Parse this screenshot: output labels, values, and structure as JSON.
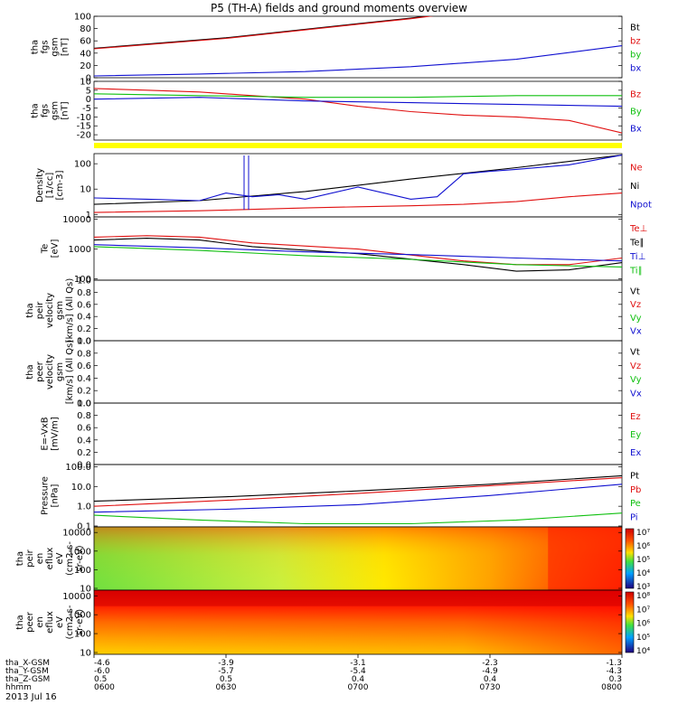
{
  "title": "P5 (TH-A) fields and ground moments overview",
  "date_label": "2013 Jul 16",
  "chart_data": [
    {
      "type": "line",
      "ylabel": [
        "tha",
        "fgs",
        "gsm",
        "[nT]"
      ],
      "ylim": [
        0,
        100
      ],
      "scale": "linear",
      "ticks": [
        0,
        20,
        40,
        60,
        80,
        100
      ],
      "series": [
        {
          "name": "Bt",
          "color": "#000000",
          "x": [
            0,
            0.25,
            0.5,
            0.6,
            0.7
          ],
          "y": [
            48,
            65,
            88,
            97,
            108
          ]
        },
        {
          "name": "bz",
          "color": "#e01010",
          "x": [
            0,
            0.25,
            0.5,
            0.6,
            0.7
          ],
          "y": [
            47,
            64,
            87,
            96,
            107
          ]
        },
        {
          "name": "by",
          "color": "#10c010",
          "x": [
            0,
            0.1,
            0.3,
            0.6,
            1.0
          ],
          "y": [
            -5,
            -5,
            -4,
            -4,
            -3
          ]
        },
        {
          "name": "bx",
          "color": "#1010d0",
          "x": [
            0,
            0.2,
            0.4,
            0.6,
            0.8,
            1.0
          ],
          "y": [
            3,
            6,
            10,
            18,
            30,
            52
          ]
        }
      ]
    },
    {
      "type": "line",
      "ylabel": [
        "tha",
        "fgs",
        "gsm",
        "[nT]"
      ],
      "ylim": [
        -23,
        10
      ],
      "scale": "linear",
      "ticks": [
        -20,
        -15,
        -10,
        -5,
        0,
        5,
        10
      ],
      "series": [
        {
          "name": "Bz",
          "color": "#e01010",
          "x": [
            0,
            0.1,
            0.2,
            0.3,
            0.4,
            0.5,
            0.6,
            0.7,
            0.8,
            0.9,
            1.0
          ],
          "y": [
            6,
            5,
            4,
            2,
            0,
            -4,
            -7,
            -9,
            -10,
            -12,
            -19
          ]
        },
        {
          "name": "By",
          "color": "#10c010",
          "x": [
            0,
            0.2,
            0.4,
            0.6,
            0.8,
            1.0
          ],
          "y": [
            3,
            2,
            1,
            1,
            2,
            2
          ]
        },
        {
          "name": "Bx",
          "color": "#1010d0",
          "x": [
            0,
            0.2,
            0.4,
            0.6,
            0.8,
            1.0
          ],
          "y": [
            0,
            1,
            -1,
            -2,
            -3,
            -4
          ]
        }
      ]
    },
    {
      "type": "line",
      "ylabel": [
        "Density",
        "[1/cc]",
        "[cm-3]"
      ],
      "ylim": [
        0.8,
        250
      ],
      "scale": "log",
      "ticks": [
        1,
        10,
        100
      ],
      "series": [
        {
          "name": "Ne",
          "color": "#e01010",
          "x": [
            0,
            0.2,
            0.4,
            0.5,
            0.6,
            0.7,
            0.8,
            0.9,
            1.0
          ],
          "y": [
            1.2,
            1.4,
            1.8,
            2.0,
            2.2,
            2.5,
            3.2,
            5,
            7
          ]
        },
        {
          "name": "Ni",
          "color": "#000000",
          "x": [
            0,
            0.2,
            0.4,
            0.6,
            0.8,
            1.0
          ],
          "y": [
            2.5,
            3.5,
            8,
            25,
            70,
            220
          ]
        },
        {
          "name": "Npot",
          "color": "#1010d0",
          "x": [
            0,
            0.1,
            0.2,
            0.25,
            0.3,
            0.35,
            0.4,
            0.5,
            0.6,
            0.65,
            0.7,
            0.75,
            0.8,
            0.9,
            1.0
          ],
          "y": [
            4.5,
            4,
            3.5,
            7,
            5,
            6,
            4,
            12,
            4,
            5,
            40,
            50,
            60,
            90,
            220
          ]
        }
      ]
    },
    {
      "type": "line",
      "ylabel": [
        "Te",
        "[eV]"
      ],
      "ylim": [
        90,
        12000
      ],
      "scale": "log",
      "ticks": [
        100,
        1000,
        10000
      ],
      "series": [
        {
          "name": "Te⊥",
          "color": "#e01010",
          "x": [
            0,
            0.1,
            0.2,
            0.3,
            0.5,
            0.7,
            0.8,
            0.9,
            1.0
          ],
          "y": [
            2500,
            2800,
            2500,
            1600,
            1000,
            400,
            300,
            300,
            500
          ]
        },
        {
          "name": "Te∥",
          "color": "#000000",
          "x": [
            0,
            0.1,
            0.2,
            0.3,
            0.5,
            0.7,
            0.8,
            0.9,
            1.0
          ],
          "y": [
            2000,
            2300,
            2000,
            1200,
            700,
            300,
            180,
            200,
            350
          ]
        },
        {
          "name": "Ti⊥",
          "color": "#1010d0",
          "x": [
            0,
            0.2,
            0.4,
            0.6,
            0.8,
            1.0
          ],
          "y": [
            1400,
            1100,
            800,
            650,
            500,
            400
          ]
        },
        {
          "name": "Ti∥",
          "color": "#10c010",
          "x": [
            0,
            0.2,
            0.4,
            0.6,
            0.8,
            1.0
          ],
          "y": [
            1200,
            900,
            600,
            450,
            300,
            250
          ]
        }
      ]
    },
    {
      "type": "line",
      "ylabel": [
        "tha",
        "peir",
        "velocity",
        "gsm",
        "[km/s] (All Qs)"
      ],
      "ylim": [
        0,
        1
      ],
      "scale": "linear",
      "ticks": [
        0,
        0.2,
        0.4,
        0.6,
        0.8,
        1.0
      ],
      "series": [
        {
          "name": "Vt",
          "color": "#000000",
          "x": [],
          "y": []
        },
        {
          "name": "Vz",
          "color": "#e01010",
          "x": [],
          "y": []
        },
        {
          "name": "Vy",
          "color": "#10c010",
          "x": [],
          "y": []
        },
        {
          "name": "Vx",
          "color": "#1010d0",
          "x": [],
          "y": []
        }
      ]
    },
    {
      "type": "line",
      "ylabel": [
        "tha",
        "peer",
        "velocity",
        "gsm",
        "[km/s] (All Qs)"
      ],
      "ylim": [
        0,
        1
      ],
      "scale": "linear",
      "ticks": [
        0,
        0.2,
        0.4,
        0.6,
        0.8,
        1.0
      ],
      "series": [
        {
          "name": "Vt",
          "color": "#000000",
          "x": [],
          "y": []
        },
        {
          "name": "Vz",
          "color": "#e01010",
          "x": [],
          "y": []
        },
        {
          "name": "Vy",
          "color": "#10c010",
          "x": [],
          "y": []
        },
        {
          "name": "Vx",
          "color": "#1010d0",
          "x": [],
          "y": []
        }
      ]
    },
    {
      "type": "line",
      "ylabel": [
        "E=-VxB",
        "[mV/m]"
      ],
      "ylim": [
        0,
        1
      ],
      "scale": "linear",
      "ticks": [
        0,
        0.2,
        0.4,
        0.6,
        0.8,
        1.0
      ],
      "series": [
        {
          "name": "Ez",
          "color": "#e01010",
          "x": [],
          "y": []
        },
        {
          "name": "Ey",
          "color": "#10c010",
          "x": [],
          "y": []
        },
        {
          "name": "Ex",
          "color": "#1010d0",
          "x": [],
          "y": []
        }
      ]
    },
    {
      "type": "line",
      "ylabel": [
        "Pressure",
        "[nPa]"
      ],
      "ylim": [
        0.09,
        130
      ],
      "scale": "log",
      "ticks": [
        0.1,
        1.0,
        10.0,
        100.0
      ],
      "series": [
        {
          "name": "Pt",
          "color": "#000000",
          "x": [
            0,
            0.25,
            0.5,
            0.75,
            1.0
          ],
          "y": [
            1.8,
            3.0,
            6,
            13,
            35
          ]
        },
        {
          "name": "Pb",
          "color": "#e01010",
          "x": [
            0,
            0.25,
            0.5,
            0.75,
            1.0
          ],
          "y": [
            1.0,
            2.0,
            4.5,
            11,
            28
          ]
        },
        {
          "name": "Pe",
          "color": "#10c010",
          "x": [
            0,
            0.2,
            0.4,
            0.6,
            0.8,
            1.0
          ],
          "y": [
            0.35,
            0.2,
            0.13,
            0.13,
            0.2,
            0.45
          ]
        },
        {
          "name": "Pi",
          "color": "#1010d0",
          "x": [
            0,
            0.25,
            0.5,
            0.75,
            1.0
          ],
          "y": [
            0.5,
            0.7,
            1.2,
            3.5,
            13
          ]
        }
      ]
    },
    {
      "type": "heatmap",
      "ylabel": [
        "tha",
        "peir",
        "en",
        "eflux",
        "eV",
        "(cm2-s-",
        "sr-eV)"
      ],
      "ylim": [
        8,
        20000
      ],
      "scale": "log",
      "ticks": [
        10,
        100,
        1000,
        10000
      ],
      "colorbar_ticks": [
        "10⁷",
        "10⁶",
        "10⁵",
        "10⁴",
        "10³"
      ]
    },
    {
      "type": "heatmap",
      "ylabel": [
        "tha",
        "peer",
        "en",
        "eflux",
        "eV",
        "(cm2-s-",
        "sr-eV)"
      ],
      "ylim": [
        8,
        20000
      ],
      "scale": "log",
      "ticks": [
        10,
        100,
        1000,
        10000
      ],
      "colorbar_ticks": [
        "10⁸",
        "10⁷",
        "10⁶",
        "10⁵",
        "10⁴"
      ]
    }
  ],
  "time_axis": {
    "rows": [
      {
        "label": "tha_X-GSM",
        "values": [
          "-4.6",
          "-3.9",
          "-3.1",
          "-2.3",
          "-1.3"
        ]
      },
      {
        "label": "tha_Y-GSM",
        "values": [
          "-6.0",
          "-5.7",
          "-5.4",
          "-4.9",
          "-4.3"
        ]
      },
      {
        "label": "tha_Z-GSM",
        "values": [
          "0.5",
          "0.5",
          "0.4",
          "0.4",
          "0.3"
        ]
      },
      {
        "label": "hhmm",
        "values": [
          "0600",
          "0630",
          "0700",
          "0730",
          "0800"
        ]
      }
    ]
  }
}
